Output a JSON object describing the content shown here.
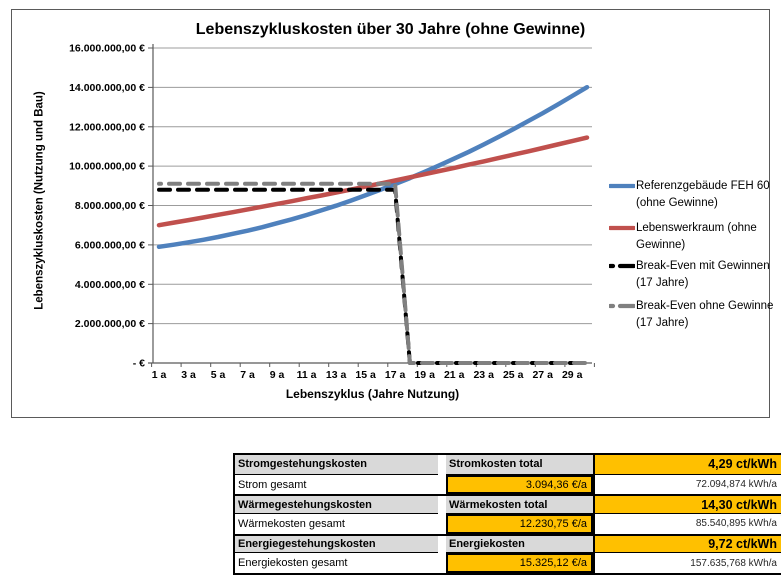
{
  "chart_data": {
    "type": "line",
    "title": "Lebenszykluskosten über 30 Jahre (ohne Gewinne)",
    "xlabel": "Lebenszyklus (Jahre Nutzung)",
    "ylabel": "Lebenszykluskosten (Nutzung und Bau)",
    "x": [
      1,
      2,
      3,
      4,
      5,
      6,
      7,
      8,
      9,
      10,
      11,
      12,
      13,
      14,
      15,
      16,
      17,
      18,
      19,
      20,
      21,
      22,
      23,
      24,
      25,
      26,
      27,
      28,
      29,
      30
    ],
    "x_tick_labels": [
      "1 a",
      "3 a",
      "5 a",
      "7 a",
      "9 a",
      "11 a",
      "13 a",
      "15 a",
      "17 a",
      "19 a",
      "21 a",
      "23 a",
      "25 a",
      "27 a",
      "29 a"
    ],
    "ylim": [
      0,
      16000000
    ],
    "y_ticks": [
      0,
      2000000,
      4000000,
      6000000,
      8000000,
      10000000,
      12000000,
      14000000,
      16000000
    ],
    "y_tick_labels": [
      "-   €",
      "2.000.000,00 €",
      "4.000.000,00 €",
      "6.000.000,00 €",
      "8.000.000,00 €",
      "10.000.000,00 €",
      "12.000.000,00 €",
      "14.000.000,00 €",
      "16.000.000,00 €"
    ],
    "grid": true,
    "legend_position": "right",
    "series": [
      {
        "name": "Referenzgebäude FEH 60 (ohne Gewinne)",
        "label_lines": [
          "Referenzgebäude FEH 60",
          "(ohne Gewinne)"
        ],
        "color": "#4F81BD",
        "style": "solid",
        "values": [
          5900000,
          6010000,
          6130000,
          6260000,
          6400000,
          6560000,
          6720000,
          6900000,
          7100000,
          7300000,
          7520000,
          7750000,
          7990000,
          8250000,
          8520000,
          8800000,
          9090000,
          9390000,
          9710000,
          10040000,
          10380000,
          10730000,
          11100000,
          11480000,
          11870000,
          12280000,
          12690000,
          13120000,
          13560000,
          14010000
        ]
      },
      {
        "name": "Lebenswerkraum (ohne Gewinne)",
        "label_lines": [
          "Lebenswerkraum (ohne",
          "Gewinne)"
        ],
        "color": "#C0504D",
        "style": "solid",
        "values": [
          7000000,
          7130000,
          7260000,
          7390000,
          7530000,
          7660000,
          7800000,
          7940000,
          8080000,
          8220000,
          8370000,
          8510000,
          8660000,
          8810000,
          8960000,
          9120000,
          9270000,
          9430000,
          9590000,
          9750000,
          9910000,
          10080000,
          10240000,
          10410000,
          10580000,
          10750000,
          10920000,
          11100000,
          11270000,
          11450000
        ]
      },
      {
        "name": "Break-Even mit Gewinnen (17 Jahre)",
        "label_lines": [
          "Break-Even mit Gewinnen",
          "(17 Jahre)"
        ],
        "color": "#000000",
        "style": "dashed",
        "values": [
          8800000,
          8800000,
          8800000,
          8800000,
          8800000,
          8800000,
          8800000,
          8800000,
          8800000,
          8800000,
          8800000,
          8800000,
          8800000,
          8800000,
          8800000,
          8800000,
          8800000,
          0,
          0,
          0,
          0,
          0,
          0,
          0,
          0,
          0,
          0,
          0,
          0,
          0
        ]
      },
      {
        "name": "Break-Even ohne Gewinne (17 Jahre)",
        "label_lines": [
          "Break-Even ohne Gewinne",
          "(17 Jahre)"
        ],
        "color": "#808080",
        "style": "dashed",
        "values": [
          9100000,
          9100000,
          9100000,
          9100000,
          9100000,
          9100000,
          9100000,
          9100000,
          9100000,
          9100000,
          9100000,
          9100000,
          9100000,
          9100000,
          9100000,
          9100000,
          9100000,
          0,
          0,
          0,
          0,
          0,
          0,
          0,
          0,
          0,
          0,
          0,
          0,
          0
        ]
      }
    ]
  },
  "table": {
    "rows": [
      {
        "type": "header",
        "cells": [
          "Stromgestehungskosten",
          "Stromkosten total",
          "4,29 ct/kWh"
        ]
      },
      {
        "type": "data",
        "cells": [
          "Strom gesamt",
          "3.094,36 €/a",
          "72.094,874 kWh/a"
        ]
      },
      {
        "type": "header",
        "cells": [
          "Wärmegestehungskosten",
          "Wärmekosten total",
          "14,30 ct/kWh"
        ]
      },
      {
        "type": "data",
        "cells": [
          "Wärmekosten gesamt",
          "12.230,75 €/a",
          "85.540,895 kWh/a"
        ]
      },
      {
        "type": "header",
        "cells": [
          "Energiegestehungskosten",
          "Energiekosten",
          "9,72 ct/kWh"
        ]
      },
      {
        "type": "data",
        "cells": [
          "Energiekosten gesamt",
          "15.325,12 €/a",
          "157.635,768 kWh/a"
        ]
      }
    ],
    "colors": {
      "header_bg": "#D9D9D9",
      "value_bg": "#FFC000",
      "border": "#000000"
    }
  }
}
